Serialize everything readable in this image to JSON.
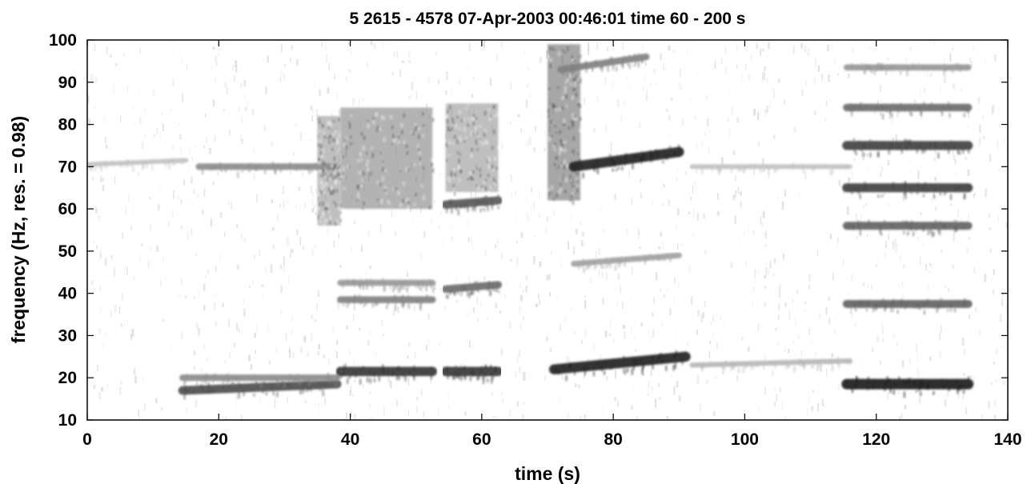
{
  "chart_data": {
    "type": "heatmap",
    "title": "5 2615 - 4578 07-Apr-2003 00:46:01 time 60 - 200 s",
    "xlabel": "time (s)",
    "ylabel": "frequency (Hz, res. = 0.98)",
    "xlim": [
      0,
      140
    ],
    "ylim": [
      10,
      100
    ],
    "x_ticks": [
      0,
      20,
      40,
      60,
      80,
      100,
      120,
      140
    ],
    "y_ticks": [
      10,
      20,
      30,
      40,
      50,
      60,
      70,
      80,
      90,
      100
    ],
    "colormap": "grayscale (white = low intensity, black = high intensity)",
    "grid": false,
    "components": [
      {
        "t_start": 0,
        "t_end": 15,
        "f_start": 70.5,
        "f_end": 71.5,
        "intensity": 0.2
      },
      {
        "t_start": 14.5,
        "t_end": 38,
        "f_start": 17,
        "f_end": 18.5,
        "intensity": 0.75
      },
      {
        "t_start": 14.5,
        "t_end": 38,
        "f_start": 20,
        "f_end": 20,
        "intensity": 0.45
      },
      {
        "t_start": 17,
        "t_end": 38,
        "f_start": 70,
        "f_end": 70,
        "intensity": 0.45
      },
      {
        "t_start": 35,
        "t_end": 38.5,
        "f_start": 56,
        "f_end": 82,
        "intensity": 0.45
      },
      {
        "t_start": 38.5,
        "t_end": 52.5,
        "f_start": 21.5,
        "f_end": 21.5,
        "intensity": 0.85
      },
      {
        "t_start": 38.5,
        "t_end": 52.5,
        "f_start": 38.5,
        "f_end": 38.5,
        "intensity": 0.5
      },
      {
        "t_start": 38.5,
        "t_end": 52.5,
        "f_start": 42.5,
        "f_end": 42.5,
        "intensity": 0.4
      },
      {
        "t_start": 38.5,
        "t_end": 52.5,
        "f_start": 60,
        "f_end": 84,
        "intensity": 0.55
      },
      {
        "t_start": 54.5,
        "t_end": 62.5,
        "f_start": 21.5,
        "f_end": 21.5,
        "intensity": 0.85
      },
      {
        "t_start": 54.5,
        "t_end": 62.5,
        "f_start": 41,
        "f_end": 42,
        "intensity": 0.6
      },
      {
        "t_start": 54.5,
        "t_end": 62.5,
        "f_start": 61,
        "f_end": 62,
        "intensity": 0.7
      },
      {
        "t_start": 54.5,
        "t_end": 62.5,
        "f_start": 64,
        "f_end": 85,
        "intensity": 0.45
      },
      {
        "t_start": 70,
        "t_end": 75,
        "f_start": 62,
        "f_end": 99,
        "intensity": 0.65
      },
      {
        "t_start": 71,
        "t_end": 91,
        "f_start": 22,
        "f_end": 25,
        "intensity": 0.95
      },
      {
        "t_start": 74,
        "t_end": 90,
        "f_start": 47,
        "f_end": 49,
        "intensity": 0.35
      },
      {
        "t_start": 74,
        "t_end": 90,
        "f_start": 70,
        "f_end": 73.5,
        "intensity": 0.95
      },
      {
        "t_start": 72,
        "t_end": 85,
        "f_start": 93,
        "f_end": 96,
        "intensity": 0.5
      },
      {
        "t_start": 92,
        "t_end": 116,
        "f_start": 23,
        "f_end": 24,
        "intensity": 0.25
      },
      {
        "t_start": 92,
        "t_end": 116,
        "f_start": 70,
        "f_end": 70,
        "intensity": 0.2
      },
      {
        "t_start": 115.5,
        "t_end": 134,
        "f_start": 18.5,
        "f_end": 18.5,
        "intensity": 1.0
      },
      {
        "t_start": 115.5,
        "t_end": 134,
        "f_start": 37.5,
        "f_end": 37.5,
        "intensity": 0.65
      },
      {
        "t_start": 115.5,
        "t_end": 134,
        "f_start": 56,
        "f_end": 56,
        "intensity": 0.65
      },
      {
        "t_start": 115.5,
        "t_end": 134,
        "f_start": 65,
        "f_end": 65,
        "intensity": 0.8
      },
      {
        "t_start": 115.5,
        "t_end": 134,
        "f_start": 75,
        "f_end": 75,
        "intensity": 0.8
      },
      {
        "t_start": 115.5,
        "t_end": 134,
        "f_start": 84,
        "f_end": 84,
        "intensity": 0.6
      },
      {
        "t_start": 115.5,
        "t_end": 134,
        "f_start": 93.5,
        "f_end": 93.5,
        "intensity": 0.4
      }
    ]
  }
}
